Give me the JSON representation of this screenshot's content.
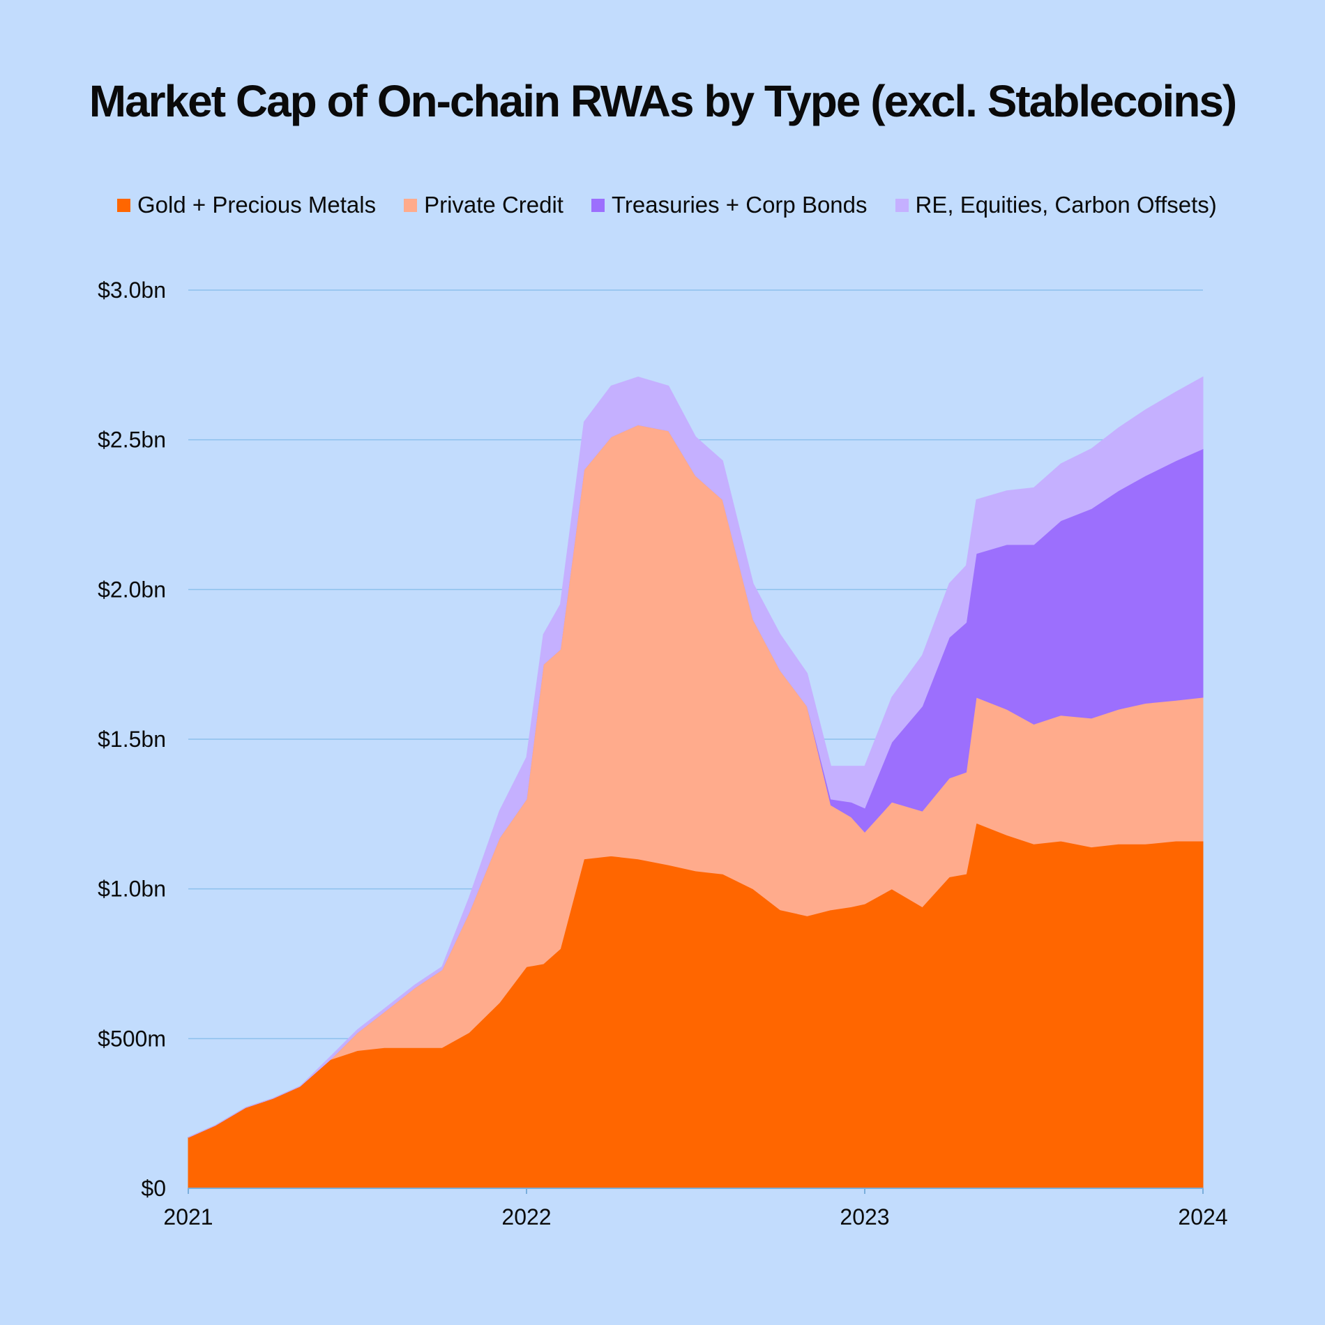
{
  "chart_data": {
    "type": "area",
    "stacked": true,
    "title": "Market Cap of On-chain RWAs by Type (excl. Stablecoins)",
    "xlabel": "",
    "ylabel": "",
    "x_ticks": [
      "2021",
      "2022",
      "2023",
      "2024"
    ],
    "y_ticks": [
      {
        "value": 0,
        "label": "$0"
      },
      {
        "value": 500,
        "label": "$500m"
      },
      {
        "value": 1000,
        "label": "$1.0bn"
      },
      {
        "value": 1500,
        "label": "$1.5bn"
      },
      {
        "value": 2000,
        "label": "$2.0bn"
      },
      {
        "value": 2500,
        "label": "$2.5bn"
      },
      {
        "value": 3000,
        "label": "$3.0bn"
      }
    ],
    "xlim": [
      2021,
      2024
    ],
    "ylim": [
      0,
      3000
    ],
    "grid": "horizontal",
    "legend_position": "top",
    "x": [
      2021.0,
      2021.08,
      2021.17,
      2021.25,
      2021.33,
      2021.42,
      2021.5,
      2021.58,
      2021.67,
      2021.75,
      2021.83,
      2021.92,
      2022.0,
      2022.05,
      2022.1,
      2022.17,
      2022.25,
      2022.33,
      2022.42,
      2022.5,
      2022.58,
      2022.67,
      2022.75,
      2022.83,
      2022.9,
      2022.96,
      2023.0,
      2023.08,
      2023.17,
      2023.25,
      2023.3,
      2023.33,
      2023.42,
      2023.5,
      2023.58,
      2023.67,
      2023.75,
      2023.83,
      2023.92,
      2024.0
    ],
    "series": [
      {
        "name": "Gold + Precious Metals",
        "color": "#ff6600",
        "values": [
          170,
          210,
          270,
          300,
          340,
          430,
          460,
          470,
          470,
          470,
          520,
          620,
          740,
          750,
          800,
          1100,
          1110,
          1100,
          1080,
          1060,
          1050,
          1000,
          930,
          910,
          930,
          940,
          950,
          1000,
          940,
          1040,
          1050,
          1220,
          1180,
          1150,
          1160,
          1140,
          1150,
          1150,
          1160,
          1160
        ]
      },
      {
        "name": "Private Credit",
        "color": "#ffab8c",
        "values": [
          0,
          0,
          0,
          0,
          0,
          0,
          60,
          120,
          200,
          260,
          400,
          550,
          560,
          1000,
          1000,
          1300,
          1400,
          1450,
          1450,
          1320,
          1250,
          900,
          800,
          700,
          350,
          300,
          240,
          290,
          320,
          330,
          340,
          420,
          420,
          400,
          420,
          430,
          450,
          470,
          470,
          480
        ]
      },
      {
        "name": "Treasuries + Corp Bonds",
        "color": "#9c6ffd",
        "values": [
          0,
          0,
          0,
          0,
          0,
          0,
          0,
          0,
          0,
          0,
          0,
          0,
          0,
          0,
          0,
          0,
          0,
          0,
          0,
          0,
          0,
          0,
          0,
          0,
          20,
          50,
          80,
          200,
          350,
          470,
          500,
          480,
          550,
          600,
          650,
          700,
          730,
          760,
          800,
          830
        ]
      },
      {
        "name": "RE, Equities, Carbon Offsets)",
        "color": "#c5b0ff",
        "values": [
          0,
          0,
          0,
          0,
          0,
          10,
          10,
          10,
          10,
          10,
          50,
          90,
          140,
          100,
          150,
          160,
          170,
          160,
          150,
          130,
          130,
          120,
          120,
          110,
          110,
          120,
          140,
          150,
          170,
          180,
          190,
          180,
          180,
          190,
          190,
          200,
          210,
          220,
          230,
          240
        ]
      }
    ]
  }
}
